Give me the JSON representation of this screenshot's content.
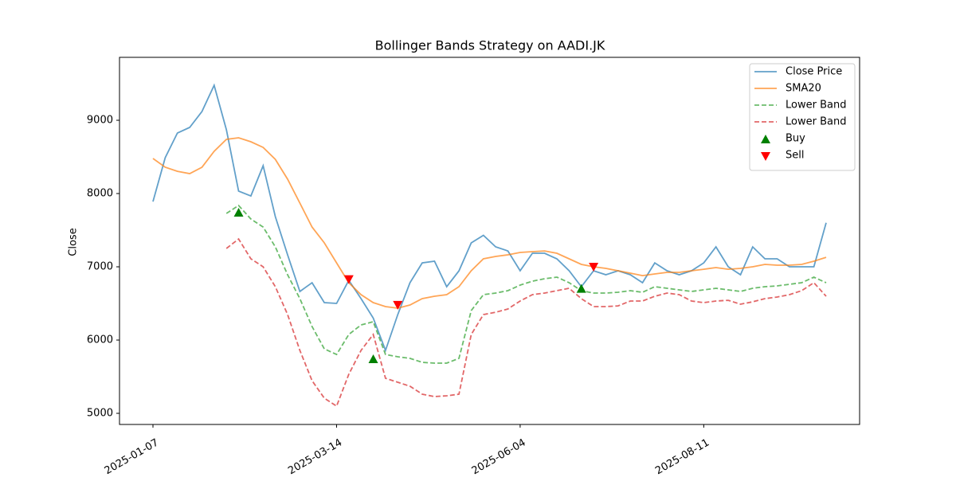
{
  "chart_data": {
    "type": "line",
    "title": "Bollinger Bands Strategy on AADI.JK",
    "y_label": "Close",
    "categories": [
      "2025-01-07",
      null,
      null,
      null,
      null,
      null,
      null,
      null,
      null,
      null,
      null,
      null,
      null,
      null,
      null,
      "2025-03-14",
      null,
      null,
      null,
      null,
      null,
      null,
      null,
      null,
      null,
      null,
      null,
      null,
      null,
      null,
      "2025-06-04",
      null,
      null,
      null,
      null,
      null,
      null,
      null,
      null,
      null,
      null,
      null,
      null,
      null,
      null,
      "2025-08-11",
      null,
      null,
      null,
      null,
      null,
      null,
      null,
      null,
      null,
      null
    ],
    "ylim": [
      4848,
      9859
    ],
    "yticks": [
      5000,
      6000,
      7000,
      8000,
      9000
    ],
    "legend": "upper right",
    "series": [
      {
        "name": "Close Price",
        "color": "#1f77b4",
        "alpha": 0.7,
        "linestyle": "solid",
        "values": [
          7891,
          8489,
          8826,
          8902,
          9120,
          9478,
          8870,
          8033,
          7967,
          8380,
          7685,
          7163,
          6663,
          6783,
          6511,
          6500,
          6815,
          6565,
          6300,
          5859,
          6348,
          6783,
          7054,
          7076,
          6728,
          6945,
          7326,
          7430,
          7272,
          7217,
          6946,
          7185,
          7185,
          7109,
          6946,
          6728,
          6946,
          6891,
          6946,
          6891,
          6783,
          7054,
          6946,
          6891,
          6946,
          7054,
          7272,
          7000,
          6891,
          7272,
          7109,
          7109,
          7000,
          7000,
          7000,
          7600
        ]
      },
      {
        "name": "SMA20",
        "color": "#ff7f0e",
        "alpha": 0.7,
        "linestyle": "solid",
        "values": [
          8478,
          8359,
          8304,
          8272,
          8359,
          8576,
          8739,
          8761,
          8707,
          8630,
          8467,
          8196,
          7870,
          7543,
          7326,
          7054,
          6783,
          6620,
          6511,
          6457,
          6435,
          6478,
          6565,
          6598,
          6620,
          6728,
          6946,
          7109,
          7141,
          7163,
          7196,
          7207,
          7217,
          7185,
          7109,
          7033,
          7000,
          6978,
          6946,
          6913,
          6880,
          6902,
          6924,
          6924,
          6946,
          6967,
          6989,
          6967,
          6978,
          7000,
          7033,
          7022,
          7022,
          7033,
          7076,
          7130
        ]
      },
      {
        "name": "Lower Band",
        "color": "#2ca02c",
        "alpha": 0.7,
        "linestyle": "dashed",
        "values": [
          null,
          null,
          null,
          null,
          null,
          null,
          7728,
          7837,
          7652,
          7543,
          7272,
          6891,
          6565,
          6185,
          5880,
          5804,
          6076,
          6207,
          6250,
          5804,
          5772,
          5750,
          5696,
          5685,
          5685,
          5750,
          6402,
          6620,
          6641,
          6674,
          6750,
          6804,
          6837,
          6859,
          6783,
          6674,
          6641,
          6641,
          6652,
          6674,
          6652,
          6728,
          6707,
          6685,
          6663,
          6685,
          6707,
          6685,
          6663,
          6707,
          6728,
          6739,
          6761,
          6783,
          6859,
          6783
        ]
      },
      {
        "name": "Lower Band",
        "color": "#d62728",
        "alpha": 0.7,
        "linestyle": "dashed",
        "values": [
          null,
          null,
          null,
          null,
          null,
          null,
          7250,
          7380,
          7109,
          7000,
          6728,
          6348,
          5859,
          5446,
          5207,
          5098,
          5533,
          5859,
          6076,
          5478,
          5424,
          5370,
          5261,
          5228,
          5239,
          5261,
          6076,
          6348,
          6380,
          6424,
          6533,
          6620,
          6641,
          6674,
          6707,
          6565,
          6457,
          6457,
          6467,
          6533,
          6533,
          6598,
          6641,
          6620,
          6533,
          6511,
          6533,
          6543,
          6489,
          6522,
          6565,
          6587,
          6620,
          6674,
          6783,
          6598
        ]
      },
      {
        "name": "Buy",
        "color": "green",
        "marker": "triangle-up",
        "values": [
          null,
          null,
          null,
          null,
          null,
          null,
          null,
          7740,
          null,
          null,
          null,
          null,
          null,
          null,
          null,
          null,
          null,
          null,
          5740,
          null,
          null,
          null,
          null,
          null,
          null,
          null,
          null,
          null,
          null,
          null,
          null,
          null,
          null,
          null,
          null,
          6700,
          null,
          null,
          null,
          null,
          null,
          null,
          null,
          null,
          null,
          null,
          null,
          null,
          null,
          null,
          null,
          null,
          null,
          null,
          null,
          null
        ]
      },
      {
        "name": "Sell",
        "color": "red",
        "marker": "triangle-down",
        "values": [
          null,
          null,
          null,
          null,
          null,
          null,
          null,
          null,
          null,
          null,
          null,
          null,
          null,
          null,
          null,
          null,
          6830,
          null,
          null,
          null,
          6480,
          null,
          null,
          null,
          null,
          null,
          null,
          null,
          null,
          null,
          null,
          null,
          null,
          null,
          null,
          null,
          7000,
          null,
          null,
          null,
          null,
          null,
          null,
          null,
          null,
          null,
          null,
          null,
          null,
          null,
          null,
          null,
          null,
          null,
          null,
          null
        ]
      }
    ]
  }
}
